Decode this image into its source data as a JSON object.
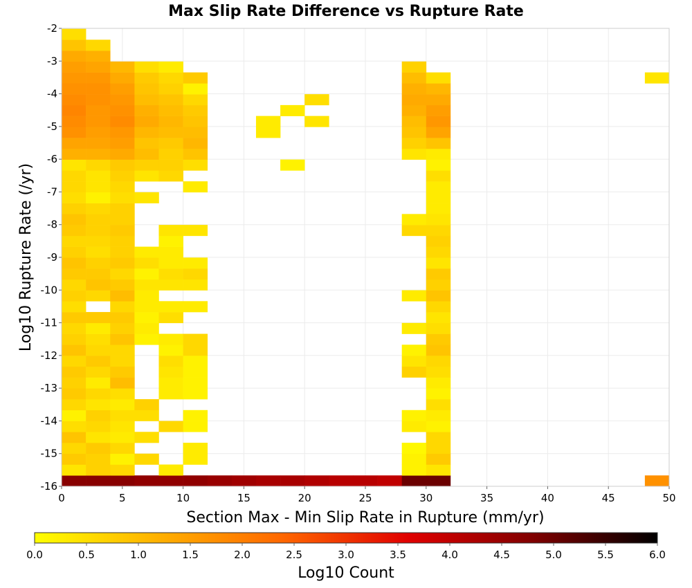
{
  "chart_data": {
    "type": "heatmap",
    "title": "Max Slip Rate Difference vs Rupture Rate",
    "xlabel": "Section Max - Min Slip Rate in Rupture (mm/yr)",
    "ylabel": "Log10 Rupture Rate (/yr)",
    "xlim": [
      0,
      50
    ],
    "ylim": [
      -16,
      -2
    ],
    "x_ticks": [
      "0",
      "5",
      "10",
      "15",
      "20",
      "25",
      "30",
      "35",
      "40",
      "45",
      "50"
    ],
    "y_ticks": [
      "-2",
      "-3",
      "-4",
      "-5",
      "-6",
      "-7",
      "-8",
      "-9",
      "-10",
      "-11",
      "-12",
      "-13",
      "-14",
      "-15",
      "-16"
    ],
    "grid": true,
    "bin_width_x": 2,
    "bin_height_y": 0.333,
    "colorbar": {
      "label": "Log10 Count",
      "range": [
        0,
        6
      ],
      "ticks": [
        "0.0",
        "0.5",
        "1.0",
        "1.5",
        "2.0",
        "2.5",
        "3.0",
        "3.5",
        "4.0",
        "4.5",
        "5.0",
        "5.5",
        "6.0"
      ],
      "colors": [
        "#ffff00",
        "#ffb000",
        "#ff6600",
        "#e00000",
        "#800000",
        "#000000"
      ]
    },
    "columns": [
      {
        "x": 1,
        "y_start": -16,
        "values": [
          4.7,
          0.4,
          0.8,
          0.6,
          0.9,
          0.5,
          0.2,
          0.6,
          0.8,
          0.7,
          0.8,
          0.6,
          0.9,
          0.7,
          0.6,
          0.8,
          0.5,
          0.7,
          0.6,
          0.8,
          0.9,
          0.7,
          0.6,
          0.8,
          0.9,
          0.7,
          0.5,
          0.6,
          0.6,
          0.4,
          1.2,
          1.4,
          1.7,
          1.8,
          1.9,
          1.8,
          1.7,
          1.6,
          1.5,
          1.3,
          0.9,
          0.5
        ]
      },
      {
        "x": 3,
        "y_start": -16,
        "values": [
          4.7,
          0.7,
          0.7,
          0.8,
          0.4,
          0.6,
          0.7,
          0.4,
          0.6,
          0.3,
          0.6,
          0.8,
          0.6,
          0.5,
          0.3,
          0.8,
          0,
          0.6,
          0.9,
          0.8,
          0.7,
          0.5,
          0.6,
          0.7,
          0.7,
          0.6,
          0.2,
          0.4,
          0.4,
          0.6,
          1.2,
          1.4,
          1.5,
          1.6,
          1.6,
          1.7,
          1.7,
          1.6,
          1.4,
          1.2,
          0.6
        ]
      },
      {
        "x": 5,
        "y_start": -16,
        "values": [
          4.7,
          0.6,
          0.2,
          0.6,
          0.3,
          0.4,
          0.5,
          0.3,
          0.5,
          1.0,
          0.8,
          0.6,
          0.6,
          0.9,
          0.7,
          0.8,
          0.6,
          1.0,
          0.8,
          0.6,
          0.8,
          0.7,
          0.7,
          0.8,
          0.7,
          0.7,
          0.5,
          0.6,
          0.7,
          0.8,
          1.3,
          1.5,
          1.6,
          1.8,
          1.7,
          1.6,
          1.5,
          1.3,
          1.1
        ]
      },
      {
        "x": 7,
        "y_start": -16,
        "values": [
          4.6,
          0,
          0.6,
          0,
          0.5,
          0,
          0.5,
          0.7,
          0,
          0,
          0,
          0,
          0,
          0.2,
          0.3,
          0.2,
          0.3,
          0.3,
          0.4,
          0.2,
          0.5,
          0.3,
          0,
          0,
          0,
          0,
          0.4,
          0,
          0.4,
          0.7,
          1.0,
          0.9,
          1.1,
          1.3,
          1.2,
          1.0,
          0.9,
          0.8,
          0.5
        ]
      },
      {
        "x": 9,
        "y_start": -16,
        "values": [
          4.6,
          0.3,
          0,
          0,
          0,
          0.6,
          0,
          0,
          0.3,
          0.3,
          0.4,
          0.5,
          0.2,
          0.3,
          0,
          0.5,
          0.3,
          0,
          0.4,
          0.5,
          0.3,
          0.3,
          0.2,
          0.4,
          0,
          0,
          0,
          0,
          0.6,
          0.7,
          0.7,
          0.8,
          1.0,
          1.1,
          1.0,
          0.9,
          0.7,
          0.6,
          0.3
        ]
      },
      {
        "x": 11,
        "y_start": -16,
        "values": [
          4.6,
          0,
          0.3,
          0.3,
          0,
          0.2,
          0.2,
          0,
          0.2,
          0.2,
          0.2,
          0.2,
          0.6,
          0.6,
          0,
          0,
          0.3,
          0,
          0.4,
          0.6,
          0.3,
          0,
          0,
          0.4,
          0,
          0,
          0,
          0.3,
          0,
          0.5,
          0.9,
          1.1,
          1.0,
          0.9,
          0.8,
          0.6,
          0.2,
          0.8
        ]
      },
      {
        "x": 13,
        "y_start": -16,
        "values": [
          4.5
        ]
      },
      {
        "x": 15,
        "y_start": -16,
        "values": [
          4.4
        ]
      },
      {
        "x": 17,
        "y_start": -16,
        "values": [
          4.3,
          0,
          0,
          0,
          0,
          0,
          0,
          0,
          0,
          0,
          0,
          0,
          0,
          0,
          0,
          0,
          0,
          0,
          0,
          0,
          0,
          0,
          0,
          0,
          0,
          0,
          0,
          0,
          0,
          0,
          0,
          0,
          0.3,
          0.3
        ]
      },
      {
        "x": 19,
        "y_start": -16,
        "values": [
          4.3,
          0,
          0,
          0,
          0,
          0,
          0,
          0,
          0,
          0,
          0,
          0,
          0,
          0,
          0,
          0,
          0,
          0,
          0,
          0,
          0,
          0,
          0,
          0,
          0,
          0,
          0,
          0,
          0,
          0.2,
          0,
          0,
          0,
          0,
          0.3
        ]
      },
      {
        "x": 21,
        "y_start": -16,
        "values": [
          4.2,
          0,
          0,
          0,
          0,
          0,
          0,
          0,
          0,
          0,
          0,
          0,
          0,
          0,
          0,
          0,
          0,
          0,
          0,
          0,
          0,
          0,
          0,
          0,
          0,
          0,
          0,
          0,
          0,
          0,
          0,
          0,
          0,
          0.4,
          0,
          0.5
        ]
      },
      {
        "x": 23,
        "y_start": -16,
        "values": [
          4.1
        ]
      },
      {
        "x": 25,
        "y_start": -16,
        "values": [
          4.1
        ]
      },
      {
        "x": 27,
        "y_start": -16,
        "values": [
          4.0
        ]
      },
      {
        "x": 29,
        "y_start": -16,
        "values": [
          5.0,
          0.2,
          0.2,
          0.1,
          0,
          0.3,
          0.2,
          0,
          0,
          0,
          0.7,
          0.4,
          0.2,
          0,
          0.3,
          0,
          0,
          0.3,
          0,
          0,
          0,
          0,
          0,
          0.6,
          0.3,
          0,
          0,
          0,
          0,
          0,
          0.4,
          0.7,
          0.9,
          1.0,
          1.2,
          1.3,
          1.2,
          1.0,
          0.7
        ]
      },
      {
        "x": 31,
        "y_start": -16,
        "values": [
          5.0,
          0.4,
          0.8,
          0.6,
          0.6,
          0.2,
          0.3,
          0.5,
          0.2,
          0.3,
          0.5,
          0.6,
          0.9,
          0.8,
          0.5,
          0.4,
          0.6,
          0.9,
          0.7,
          0.8,
          0.4,
          0.6,
          0.7,
          0.6,
          0.4,
          0.3,
          0.3,
          0.3,
          0.5,
          0.2,
          0.3,
          0.9,
          1.4,
          1.6,
          1.5,
          1.3,
          1.1,
          0.5
        ]
      },
      {
        "x": 49,
        "y_start": -16,
        "values": [
          1.7,
          0,
          0,
          0,
          0,
          0,
          0,
          0,
          0,
          0,
          0,
          0,
          0,
          0,
          0,
          0,
          0,
          0,
          0,
          0,
          0,
          0,
          0,
          0,
          0,
          0,
          0,
          0,
          0,
          0,
          0,
          0,
          0,
          0,
          0,
          0,
          0,
          0.4
        ]
      }
    ]
  }
}
